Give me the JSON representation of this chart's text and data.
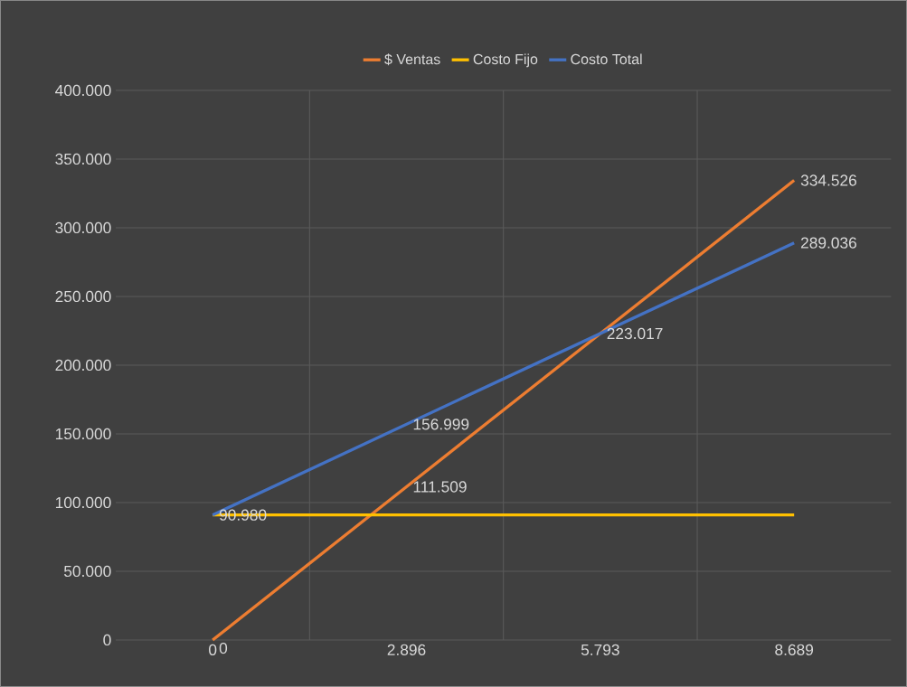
{
  "chart_data": {
    "type": "line",
    "categories": [
      "0",
      "2.896",
      "5.793",
      "8.689"
    ],
    "series": [
      {
        "name": "$ Ventas",
        "color": "#ed7d31",
        "values": [
          0,
          111509,
          223017,
          334526
        ],
        "value_labels": [
          "0",
          "111.509",
          "223.017",
          "334.526"
        ]
      },
      {
        "name": "Costo Fijo",
        "color": "#ffc000",
        "values": [
          90980,
          90980,
          90980,
          90980
        ]
      },
      {
        "name": "Costo Total",
        "color": "#4472c4",
        "values": [
          90980,
          156999,
          223017,
          289036
        ],
        "value_labels": [
          "90.980",
          "156.999",
          null,
          "289.036"
        ]
      }
    ],
    "ylim": [
      0,
      400000
    ],
    "yticks": [
      0,
      {
        "value": 50000,
        "label": "50.000"
      },
      {
        "value": 100000,
        "label": "100.000"
      },
      {
        "value": 150000,
        "label": "150.000"
      },
      {
        "value": 200000,
        "label": "200.000"
      },
      {
        "value": 250000,
        "label": "250.000"
      },
      {
        "value": 300000,
        "label": "300.000"
      },
      {
        "value": 350000,
        "label": "350.000"
      },
      {
        "value": 400000,
        "label": "400.000"
      }
    ],
    "grid": true,
    "legend": "top"
  }
}
